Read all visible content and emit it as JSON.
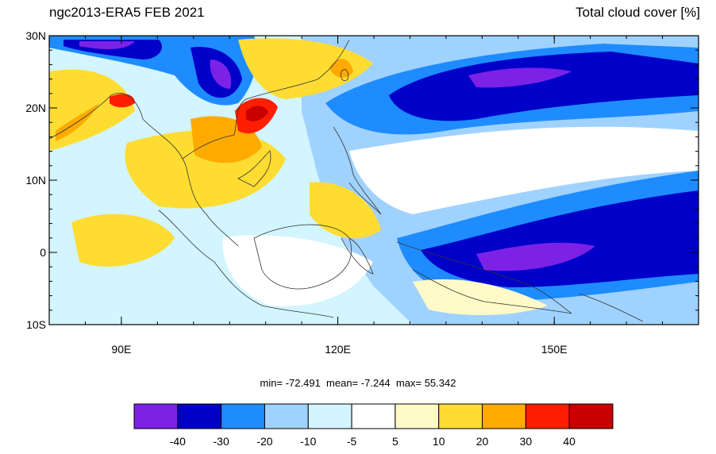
{
  "title_left": "ngc2013-ERA5 FEB 2021",
  "title_right": "Total cloud cover [%]",
  "map": {
    "lon_range": [
      80,
      170
    ],
    "lat_range": [
      -10,
      30
    ],
    "lat_ticks": [
      {
        "value": 30,
        "label": "30N"
      },
      {
        "value": 20,
        "label": "20N"
      },
      {
        "value": 10,
        "label": "10N"
      },
      {
        "value": 0,
        "label": "0"
      },
      {
        "value": -10,
        "label": "10S"
      }
    ],
    "lon_ticks": [
      {
        "value": 90,
        "label": "90E"
      },
      {
        "value": 120,
        "label": "120E"
      },
      {
        "value": 150,
        "label": "150E"
      }
    ]
  },
  "stats": {
    "min_label": "min=",
    "min": "-72.491",
    "mean_label": "mean=",
    "mean": "-7.244",
    "max_label": "max=",
    "max": "55.342"
  },
  "colorbar": {
    "colors": [
      "#7b22e6",
      "#0000c8",
      "#1e8cff",
      "#a0d2ff",
      "#d2f5ff",
      "#ffffff",
      "#fffac8",
      "#ffdc32",
      "#ffaa00",
      "#ff1e00",
      "#c80000"
    ],
    "labels": [
      "-40",
      "-30",
      "-20",
      "-10",
      "-5",
      "5",
      "10",
      "20",
      "30",
      "40"
    ]
  }
}
